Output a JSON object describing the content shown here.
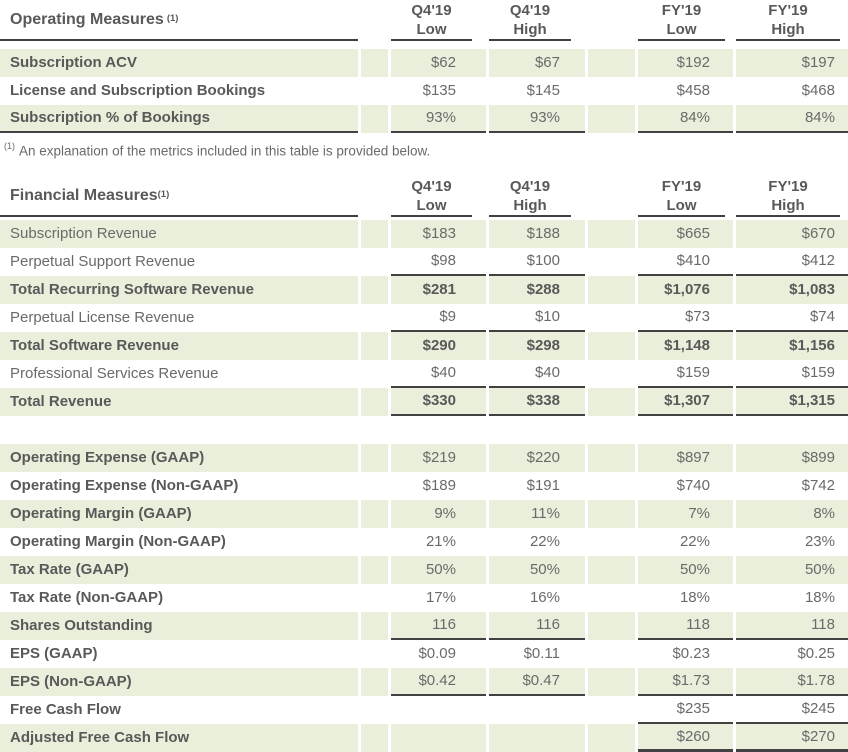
{
  "colors": {
    "row_green": "#e9efda",
    "rule_line": "#414141",
    "text": "#6a6a6a",
    "text_strong": "#595959"
  },
  "columns": [
    {
      "period": "Q4'19",
      "bound": "Low"
    },
    {
      "period": "Q4'19",
      "bound": "High"
    },
    {
      "period": "FY'19",
      "bound": "Low"
    },
    {
      "period": "FY'19",
      "bound": "High"
    }
  ],
  "operating": {
    "title": "Operating Measures",
    "sup": "(1)",
    "rows": [
      {
        "label": "Subscription ACV",
        "values": [
          "$62",
          "$67",
          "$192",
          "$197"
        ]
      },
      {
        "label": "License and Subscription Bookings",
        "values": [
          "$135",
          "$145",
          "$458",
          "$468"
        ]
      },
      {
        "label": "Subscription % of Bookings",
        "values": [
          "93%",
          "93%",
          "84%",
          "84%"
        ]
      }
    ]
  },
  "footnote": {
    "sup": "(1)",
    "text": "An explanation of the metrics included in this table is provided below."
  },
  "financial": {
    "title": "Financial Measures",
    "sup": "(1)",
    "rows": [
      {
        "label": "Subscription Revenue",
        "values": [
          "$183",
          "$188",
          "$665",
          "$670"
        ]
      },
      {
        "label": "Perpetual Support Revenue",
        "values": [
          "$98",
          "$100",
          "$410",
          "$412"
        ]
      },
      {
        "label": "Total Recurring Software Revenue",
        "values": [
          "$281",
          "$288",
          "$1,076",
          "$1,083"
        ]
      },
      {
        "label": "Perpetual License Revenue",
        "values": [
          "$9",
          "$10",
          "$73",
          "$74"
        ]
      },
      {
        "label": "Total Software Revenue",
        "values": [
          "$290",
          "$298",
          "$1,148",
          "$1,156"
        ]
      },
      {
        "label": "Professional Services Revenue",
        "values": [
          "$40",
          "$40",
          "$159",
          "$159"
        ]
      },
      {
        "label": "Total Revenue",
        "values": [
          "$330",
          "$338",
          "$1,307",
          "$1,315"
        ]
      },
      {
        "label": "Operating Expense (GAAP)",
        "values": [
          "$219",
          "$220",
          "$897",
          "$899"
        ]
      },
      {
        "label": "Operating Expense (Non-GAAP)",
        "values": [
          "$189",
          "$191",
          "$740",
          "$742"
        ]
      },
      {
        "label": "Operating Margin (GAAP)",
        "values": [
          "9%",
          "11%",
          "7%",
          "8%"
        ]
      },
      {
        "label": "Operating Margin (Non-GAAP)",
        "values": [
          "21%",
          "22%",
          "22%",
          "23%"
        ]
      },
      {
        "label": "Tax Rate (GAAP)",
        "values": [
          "50%",
          "50%",
          "50%",
          "50%"
        ]
      },
      {
        "label": "Tax Rate (Non-GAAP)",
        "values": [
          "17%",
          "16%",
          "18%",
          "18%"
        ]
      },
      {
        "label": "Shares Outstanding",
        "values": [
          "116",
          "116",
          "118",
          "118"
        ]
      },
      {
        "label": "EPS (GAAP)",
        "values": [
          "$0.09",
          "$0.11",
          "$0.23",
          "$0.25"
        ]
      },
      {
        "label": "EPS (Non-GAAP)",
        "values": [
          "$0.42",
          "$0.47",
          "$1.73",
          "$1.78"
        ]
      },
      {
        "label": "Free Cash Flow",
        "values": [
          "",
          "",
          "$235",
          "$245"
        ]
      },
      {
        "label": "Adjusted Free Cash Flow",
        "values": [
          "",
          "",
          "$260",
          "$270"
        ]
      }
    ]
  }
}
